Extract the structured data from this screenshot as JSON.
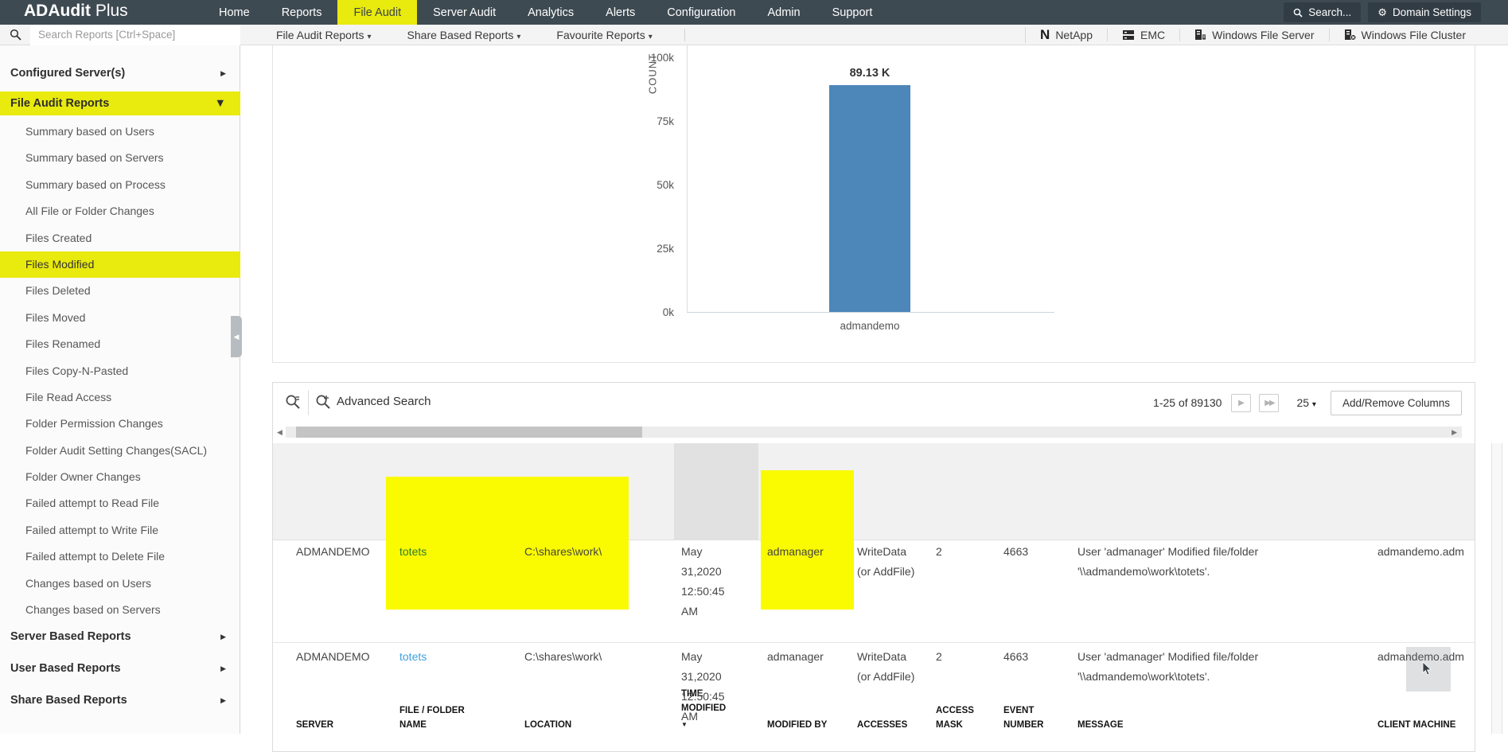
{
  "navbar": {
    "brand_bold": "ADAudit",
    "brand_light": " Plus",
    "items": [
      {
        "label": "Home",
        "active": false
      },
      {
        "label": "Reports",
        "active": false
      },
      {
        "label": "File Audit",
        "active": true
      },
      {
        "label": "Server Audit",
        "active": false
      },
      {
        "label": "Analytics",
        "active": false
      },
      {
        "label": "Alerts",
        "active": false
      },
      {
        "label": "Configuration",
        "active": false
      },
      {
        "label": "Admin",
        "active": false
      },
      {
        "label": "Support",
        "active": false
      }
    ],
    "search_label": "Search...",
    "domain_settings_label": "Domain Settings"
  },
  "reports_bar": {
    "search_placeholder": "Search Reports [Ctrl+Space]",
    "menus": [
      {
        "label": "File Audit Reports"
      },
      {
        "label": "Share Based Reports"
      },
      {
        "label": "Favourite Reports"
      }
    ],
    "platforms": [
      {
        "label": "NetApp",
        "icon": "netapp-icon"
      },
      {
        "label": "EMC",
        "icon": "emc-icon"
      },
      {
        "label": "Windows File Server",
        "icon": "file-server-icon"
      },
      {
        "label": "Windows File Cluster",
        "icon": "file-cluster-icon"
      }
    ]
  },
  "sidebar": {
    "sections": [
      {
        "label": "Configured Server(s)",
        "expanded": false
      },
      {
        "label": "File Audit Reports",
        "expanded": true,
        "highlighted": true
      },
      {
        "label": "Server Based Reports",
        "expanded": false
      },
      {
        "label": "User Based Reports",
        "expanded": false
      },
      {
        "label": "Share Based Reports",
        "expanded": false
      }
    ],
    "file_audit_items": [
      {
        "label": "Summary based on Users",
        "active": false
      },
      {
        "label": "Summary based on Servers",
        "active": false
      },
      {
        "label": "Summary based on Process",
        "active": false
      },
      {
        "label": "All File or Folder Changes",
        "active": false
      },
      {
        "label": "Files Created",
        "active": false
      },
      {
        "label": "Files Modified",
        "active": true
      },
      {
        "label": "Files Deleted",
        "active": false
      },
      {
        "label": "Files Moved",
        "active": false
      },
      {
        "label": "Files Renamed",
        "active": false
      },
      {
        "label": "Files Copy-N-Pasted",
        "active": false
      },
      {
        "label": "File Read Access",
        "active": false
      },
      {
        "label": "Folder Permission Changes",
        "active": false
      },
      {
        "label": "Folder Audit Setting Changes(SACL)",
        "active": false
      },
      {
        "label": "Folder Owner Changes",
        "active": false
      },
      {
        "label": "Failed attempt to Read File",
        "active": false
      },
      {
        "label": "Failed attempt to Write File",
        "active": false
      },
      {
        "label": "Failed attempt to Delete File",
        "active": false
      },
      {
        "label": "Changes based on Users",
        "active": false
      },
      {
        "label": "Changes based on Servers",
        "active": false
      }
    ]
  },
  "chart_data": {
    "type": "bar",
    "title": "",
    "categories": [
      "admandemo"
    ],
    "values": [
      89130
    ],
    "data_labels": [
      "89.13 K"
    ],
    "xlabel": "",
    "ylabel": "COUNT",
    "ylim": [
      0,
      100000
    ],
    "yticks": [
      {
        "value": 0,
        "label": "0k"
      },
      {
        "value": 25000,
        "label": "25k"
      },
      {
        "value": 50000,
        "label": "50k"
      },
      {
        "value": 75000,
        "label": "75k"
      },
      {
        "value": 100000,
        "label": "100k"
      }
    ],
    "bar_color": "#4d86b8",
    "grid": false,
    "legend": false
  },
  "table": {
    "advanced_search_label": "Advanced Search",
    "pagination": {
      "range_label": "1-25 of 89130",
      "page_size": "25"
    },
    "add_remove_columns_label": "Add/Remove Columns",
    "columns": [
      {
        "label": "SERVER"
      },
      {
        "label": "FILE / FOLDER NAME",
        "highlighted": true
      },
      {
        "label": "LOCATION",
        "highlighted": true
      },
      {
        "label": "TIME MODIFIED",
        "sorted": "desc"
      },
      {
        "label": "MODIFIED BY",
        "highlighted": true
      },
      {
        "label": "ACCESSES"
      },
      {
        "label": "ACCESS MASK"
      },
      {
        "label": "EVENT NUMBER"
      },
      {
        "label": "MESSAGE"
      },
      {
        "label": "CLIENT MACHINE"
      }
    ],
    "rows": [
      {
        "server": "ADMANDEMO",
        "file_folder_name": "totets",
        "location": "C:\\shares\\work\\",
        "time_modified": "May 31,2020 12:50:45 AM",
        "modified_by": "admanager",
        "accesses": "WriteData (or AddFile)",
        "access_mask": "2",
        "event_number": "4663",
        "message": "User 'admanager' Modified file/folder '\\\\admandemo\\work\\totets'.",
        "client_machine": "admandemo.adm"
      },
      {
        "server": "ADMANDEMO",
        "file_folder_name": "totets",
        "location": "C:\\shares\\work\\",
        "time_modified": "May 31,2020 12:50:45 AM",
        "modified_by": "admanager",
        "accesses": "WriteData (or AddFile)",
        "access_mask": "2",
        "event_number": "4663",
        "message": "User 'admanager' Modified file/folder '\\\\admandemo\\work\\totets'.",
        "client_machine": "admandemo.adm"
      }
    ]
  }
}
